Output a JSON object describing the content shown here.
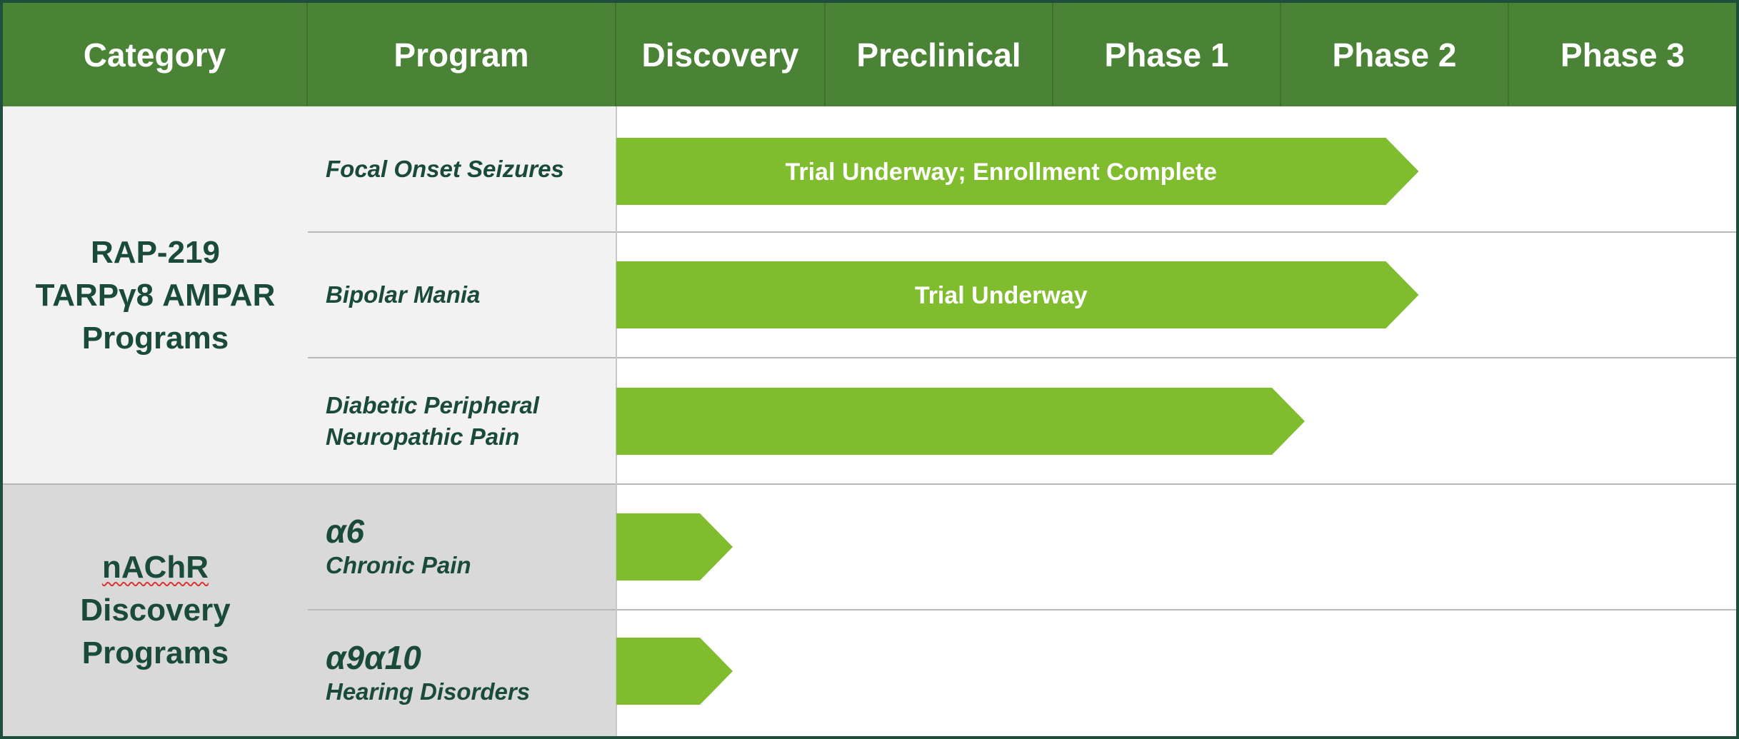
{
  "chart_data": {
    "type": "table",
    "stages": [
      "Discovery",
      "Preclinical",
      "Phase 1",
      "Phase 2",
      "Phase 3"
    ],
    "columns": [
      "Category",
      "Program"
    ],
    "categories": [
      {
        "lines": [
          "RAP-219",
          "TARPγ8 AMPAR",
          "Programs"
        ],
        "programs": [
          {
            "lines": [
              "Focal Onset Seizures"
            ],
            "progress_stage": 3.5,
            "bar_label": "Trial Underway; Enrollment Complete"
          },
          {
            "lines": [
              "Bipolar Mania"
            ],
            "progress_stage": 3.5,
            "bar_label": "Trial Underway"
          },
          {
            "lines": [
              "Diabetic Peripheral",
              "Neuropathic Pain"
            ],
            "progress_stage": 3.0,
            "bar_label": ""
          }
        ]
      },
      {
        "lines": [
          "nAChR",
          "Discovery",
          "Programs"
        ],
        "programs": [
          {
            "target": "α6",
            "lines": [
              "Chronic Pain"
            ],
            "progress_stage": 0.5,
            "bar_label": ""
          },
          {
            "target": "α9α10",
            "lines": [
              "Hearing Disorders"
            ],
            "progress_stage": 0.5,
            "bar_label": ""
          }
        ]
      }
    ]
  },
  "colors": {
    "header_bg": "#4a8336",
    "bar": "#80bd2e",
    "text_dark": "#1a4a3b",
    "category_bg_1": "#f2f2f2",
    "category_bg_2": "#d9d9d9"
  }
}
